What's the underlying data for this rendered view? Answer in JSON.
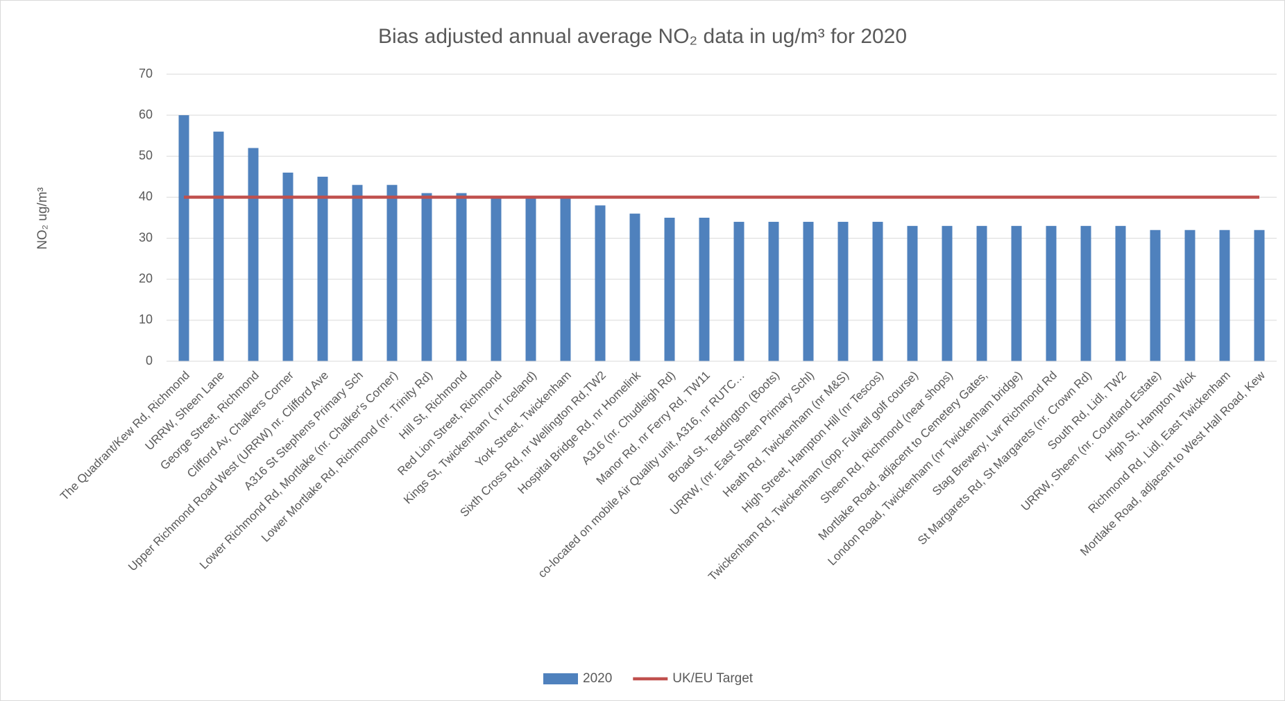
{
  "chart_data": {
    "type": "bar",
    "title": "Bias adjusted annual average NO₂ data in ug/m³ for 2020",
    "y_label": "NO₂ ug/m³",
    "categories": [
      "The Quadrant/Kew Rd, Richmond",
      "URRW, Sheen Lane",
      "George Street, Richmond",
      "Clifford Av, Chalkers Corner",
      "Upper Richmond Road West (URRW) nr. Clifford Ave",
      "A316 St Stephens Primary Sch",
      "Lower Richmond Rd, Mortlake (nr. Chalker's Corner)",
      "Lower Mortlake Rd, Richmond (nr. Trinity Rd)",
      "Hill St, Richmond",
      "Red Lion Street, Richmond",
      "Kings St, Twickenham ( nr Iceland)",
      "York Street, Twickenham",
      "Sixth Cross Rd, nr Wellington Rd,TW2",
      "Hospital Bridge Rd, nr Homelink",
      "A316 (nr. Chudleigh Rd)",
      "Manor Rd, nr Ferry Rd, TW11",
      "co-located on mobile Air Quality unit, A316, nr RUTC…",
      "Broad St, Teddington (Boots)",
      "URRW, (nr. East Sheen Primary Schl)",
      "Heath Rd, Twickenham (nr M&S)",
      "High Street, Hampton Hill (nr Tescos)",
      "Twickenham Rd, Twickenham (opp. Fulwell golf course)",
      "Sheen Rd, Richmond (near shops)",
      "Mortlake Road, adjacent to Cemetery Gates,",
      "London Road, Twickenham (nr Twickenham bridge)",
      "Stag Brewery, Lwr Richmond Rd",
      "St Margarets Rd, St Margarets (nr. Crown Rd)",
      "South Rd, Lidl, TW2",
      "URRW, Sheen (nr. Courtland Estate)",
      "High St, Hampton Wick",
      "Richmond Rd, Lidl, East Twickenham",
      "Mortlake Road, adjacent to West Hall Road, Kew"
    ],
    "series": [
      {
        "name": "2020",
        "type": "bar",
        "color": "#4f81bd",
        "values": [
          60,
          56,
          52,
          46,
          45,
          43,
          43,
          41,
          41,
          40,
          40,
          40,
          38,
          36,
          35,
          35,
          34,
          34,
          34,
          34,
          34,
          33,
          33,
          33,
          33,
          33,
          33,
          33,
          32,
          32,
          32,
          32
        ]
      },
      {
        "name": "UK/EU Target",
        "type": "line",
        "color": "#c0504d",
        "values": [
          40,
          40,
          40,
          40,
          40,
          40,
          40,
          40,
          40,
          40,
          40,
          40,
          40,
          40,
          40,
          40,
          40,
          40,
          40,
          40,
          40,
          40,
          40,
          40,
          40,
          40,
          40,
          40,
          40,
          40,
          40,
          40
        ]
      }
    ],
    "ylim": [
      0,
      70
    ],
    "yticks": [
      0,
      10,
      20,
      30,
      40,
      50,
      60,
      70
    ],
    "grid": true,
    "legend": "bottom"
  }
}
